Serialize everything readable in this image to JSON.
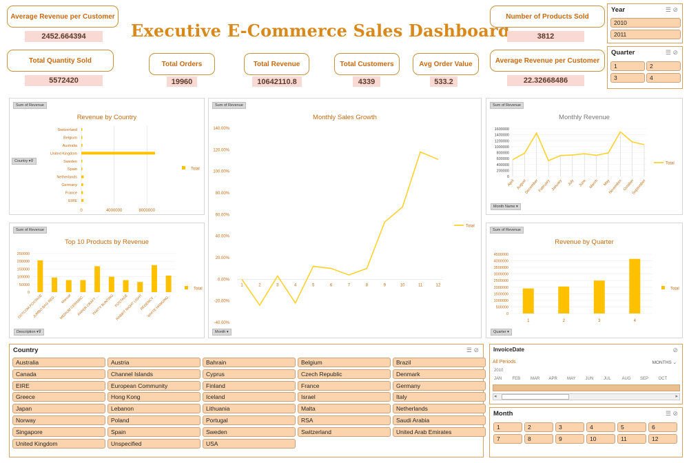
{
  "title": "Executive E-Commerce Sales Dashboard",
  "kpis": {
    "avg_rev_left": {
      "label": "Average Revenue per Customer",
      "value": "2452.664394"
    },
    "products_sold": {
      "label": "Number of Products Sold",
      "value": "3812"
    },
    "total_qty": {
      "label": "Total Quantity Sold",
      "value": "5572420"
    },
    "total_orders": {
      "label": "Total Orders",
      "value": "19960"
    },
    "total_revenue": {
      "label": "Total Revenue",
      "value": "10642110.8"
    },
    "total_customers": {
      "label": "Total Customers",
      "value": "4339"
    },
    "avg_order": {
      "label": "Avg Order Value",
      "value": "533.2"
    },
    "avg_rev_right": {
      "label": "Average Revenue per Customer",
      "value": "22.32668486"
    }
  },
  "year_slicer": {
    "title": "Year",
    "items": [
      "2010",
      "2011"
    ]
  },
  "quarter_slicer": {
    "title": "Quarter",
    "items": [
      "1",
      "2",
      "3",
      "4"
    ]
  },
  "country_slicer": {
    "title": "Country",
    "items": [
      "Australia",
      "Austria",
      "Bahrain",
      "Belgium",
      "Brazil",
      "Canada",
      "Channel Islands",
      "Cyprus",
      "Czech Republic",
      "Denmark",
      "EIRE",
      "European Community",
      "Finland",
      "France",
      "Germany",
      "Greece",
      "Hong Kong",
      "Iceland",
      "Israel",
      "Italy",
      "Japan",
      "Lebanon",
      "Lithuania",
      "Malta",
      "Netherlands",
      "Norway",
      "Poland",
      "Portugal",
      "RSA",
      "Saudi Arabia",
      "Singapore",
      "Spain",
      "Sweden",
      "Switzerland",
      "United Arab Emirates",
      "United Kingdom",
      "Unspecified",
      "USA"
    ]
  },
  "timeline": {
    "title": "InvoiceDate",
    "period_label": "All Periods",
    "unit_label": "MONTHS",
    "year": "2010",
    "months": [
      "JAN",
      "FEB",
      "MAR",
      "APR",
      "MAY",
      "JUN",
      "JUL",
      "AUG",
      "SEP",
      "OCT"
    ]
  },
  "month_slicer": {
    "title": "Month",
    "items": [
      "1",
      "2",
      "3",
      "4",
      "5",
      "6",
      "7",
      "8",
      "9",
      "10",
      "11",
      "12"
    ]
  },
  "field_tags": {
    "sum_of_revenue": "Sum of Revenue",
    "country": "Country",
    "description": "Description",
    "month": "Month",
    "month_name": "Month Name",
    "quarter": "Quarter"
  },
  "legend_total": "Total",
  "chart_data": [
    {
      "id": "revenue_by_country",
      "type": "bar",
      "orientation": "horizontal",
      "title": "Revenue by Country",
      "categories": [
        "Switzerland",
        "Belgium",
        "Australia",
        "United Kingdom",
        "Sweden",
        "Spain",
        "Netherlands",
        "Germany",
        "France",
        "EIRE"
      ],
      "values": [
        55000,
        40000,
        135000,
        8990000,
        35000,
        55000,
        285000,
        220000,
        195000,
        265000
      ],
      "xticks": [
        "0",
        "4000000",
        "8000000"
      ],
      "xlim": [
        0,
        10500000
      ],
      "series": [
        {
          "name": "Total"
        }
      ]
    },
    {
      "id": "monthly_sales_growth",
      "type": "line",
      "title": "Monthly Sales Growth",
      "x": [
        1,
        2,
        3,
        4,
        5,
        6,
        7,
        8,
        9,
        10,
        11,
        12
      ],
      "values": [
        0.0,
        -0.24,
        0.03,
        -0.22,
        0.12,
        0.1,
        0.04,
        0.1,
        0.53,
        0.67,
        1.18,
        1.11
      ],
      "yticks": [
        "-40.00%",
        "-20.00%",
        "0.00%",
        "20.00%",
        "40.00%",
        "60.00%",
        "80.00%",
        "100.00%",
        "120.00%",
        "140.00%"
      ],
      "ylim": [
        -0.4,
        1.4
      ],
      "series": [
        {
          "name": "Total"
        }
      ]
    },
    {
      "id": "monthly_revenue",
      "type": "line",
      "title": "Monthly Revenue",
      "categories": [
        "April",
        "August",
        "December",
        "February",
        "January",
        "July",
        "June",
        "March",
        "May",
        "November",
        "October",
        "September"
      ],
      "values": [
        560000,
        780000,
        1460000,
        530000,
        700000,
        720000,
        760000,
        710000,
        790000,
        1500000,
        1160000,
        1070000
      ],
      "yticks": [
        "0",
        "200000",
        "400000",
        "600000",
        "800000",
        "1000000",
        "1200000",
        "1400000",
        "1600000"
      ],
      "ylim": [
        0,
        1600000
      ],
      "series": [
        {
          "name": "Total"
        }
      ]
    },
    {
      "id": "top10_products",
      "type": "bar",
      "title": "Top 10 Products by Revenue",
      "categories": [
        "DOTCOM POSTAGE",
        "JUMBO BAG RED...",
        "Manual",
        "MEDIUM CERAMIC...",
        "PAPER CRAFT ,...",
        "PARTY BUNTING",
        "POSTAGE",
        "RABBIT NIGHT LIGHT",
        "REGENCY ...",
        "WHITE HANGING..."
      ],
      "values": [
        206000,
        95000,
        78000,
        78000,
        168000,
        100000,
        78000,
        66000,
        175000,
        107000
      ],
      "yticks": [
        "0",
        "50000",
        "100000",
        "150000",
        "200000",
        "250000"
      ],
      "ylim": [
        0,
        250000
      ],
      "series": [
        {
          "name": "Total"
        }
      ]
    },
    {
      "id": "revenue_by_quarter",
      "type": "bar",
      "title": "Revenue by Quarter",
      "categories": [
        "1",
        "2",
        "3",
        "4"
      ],
      "values": [
        1900000,
        2050000,
        2500000,
        4150000
      ],
      "yticks": [
        "0",
        "500000",
        "1000000",
        "1500000",
        "2000000",
        "2500000",
        "3000000",
        "3500000",
        "4000000",
        "4500000"
      ],
      "ylim": [
        0,
        4500000
      ],
      "series": [
        {
          "name": "Total"
        }
      ]
    }
  ],
  "colors": {
    "accent": "#c46a12",
    "title": "#d9891b",
    "bar": "#ffc000",
    "line": "#ffd12e",
    "slicer_btn": "#fbd4ad",
    "kpi_value_bg": "#f8d9d3"
  }
}
